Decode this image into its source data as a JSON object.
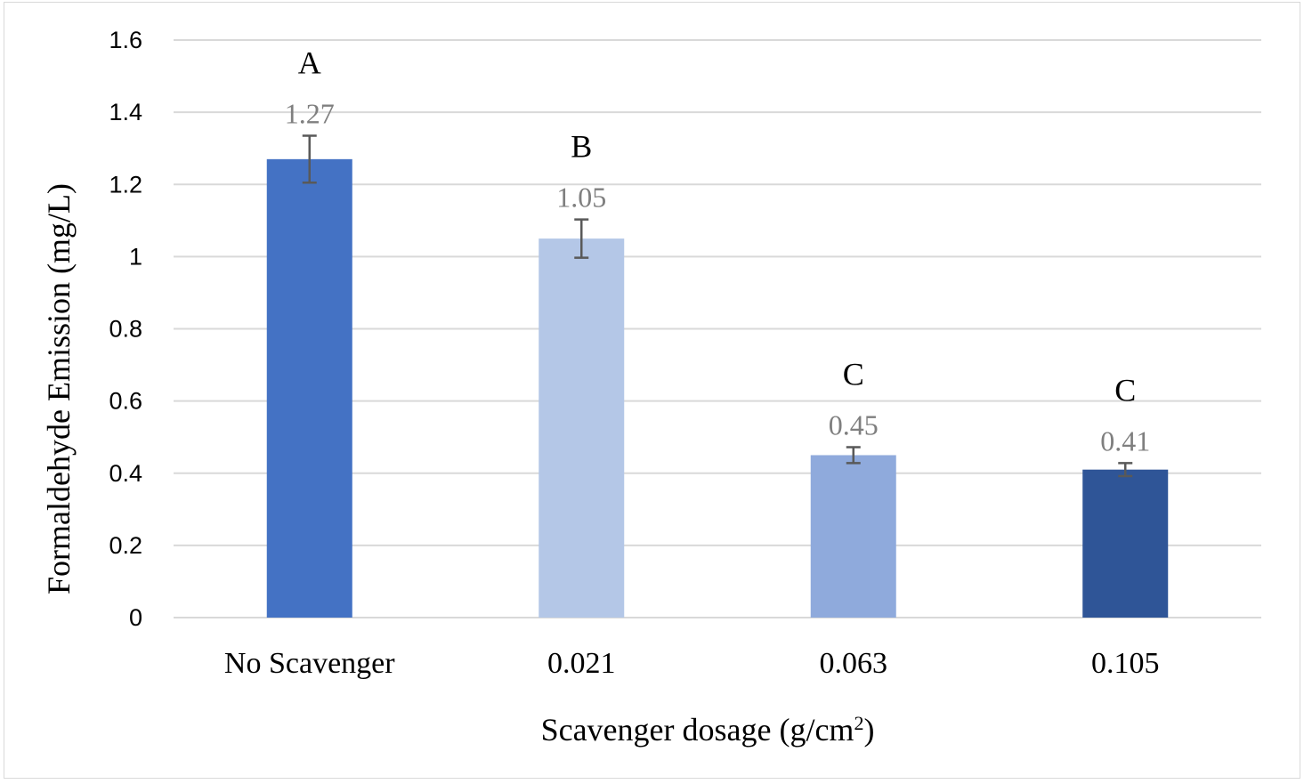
{
  "chart_data": {
    "type": "bar",
    "categories": [
      "No Scavenger",
      "0.021",
      "0.063",
      "0.105"
    ],
    "values": [
      1.27,
      1.05,
      0.45,
      0.41
    ],
    "value_labels": [
      "1.27",
      "1.05",
      "0.45",
      "0.41"
    ],
    "error": [
      0.065,
      0.053,
      0.022,
      0.018
    ],
    "significance_letters": [
      "A",
      "B",
      "C",
      "C"
    ],
    "bar_colors": [
      "#4472c4",
      "#b4c7e7",
      "#8faadc",
      "#2f5597"
    ],
    "ylabel": "Formaldehyde Emission (mg/L)",
    "xlabel_main": "Scavenger dosage (g/cm",
    "xlabel_sup": "2",
    "xlabel_end": ")",
    "ylim": [
      0,
      1.6
    ],
    "yticks": [
      0,
      0.2,
      0.4,
      0.6,
      0.8,
      1,
      1.2,
      1.4,
      1.6
    ],
    "ytick_labels": [
      "0",
      "0.2",
      "0.4",
      "0.6",
      "0.8",
      "1",
      "1.2",
      "1.4",
      "1.6"
    ],
    "grid": true,
    "legend": "none"
  }
}
